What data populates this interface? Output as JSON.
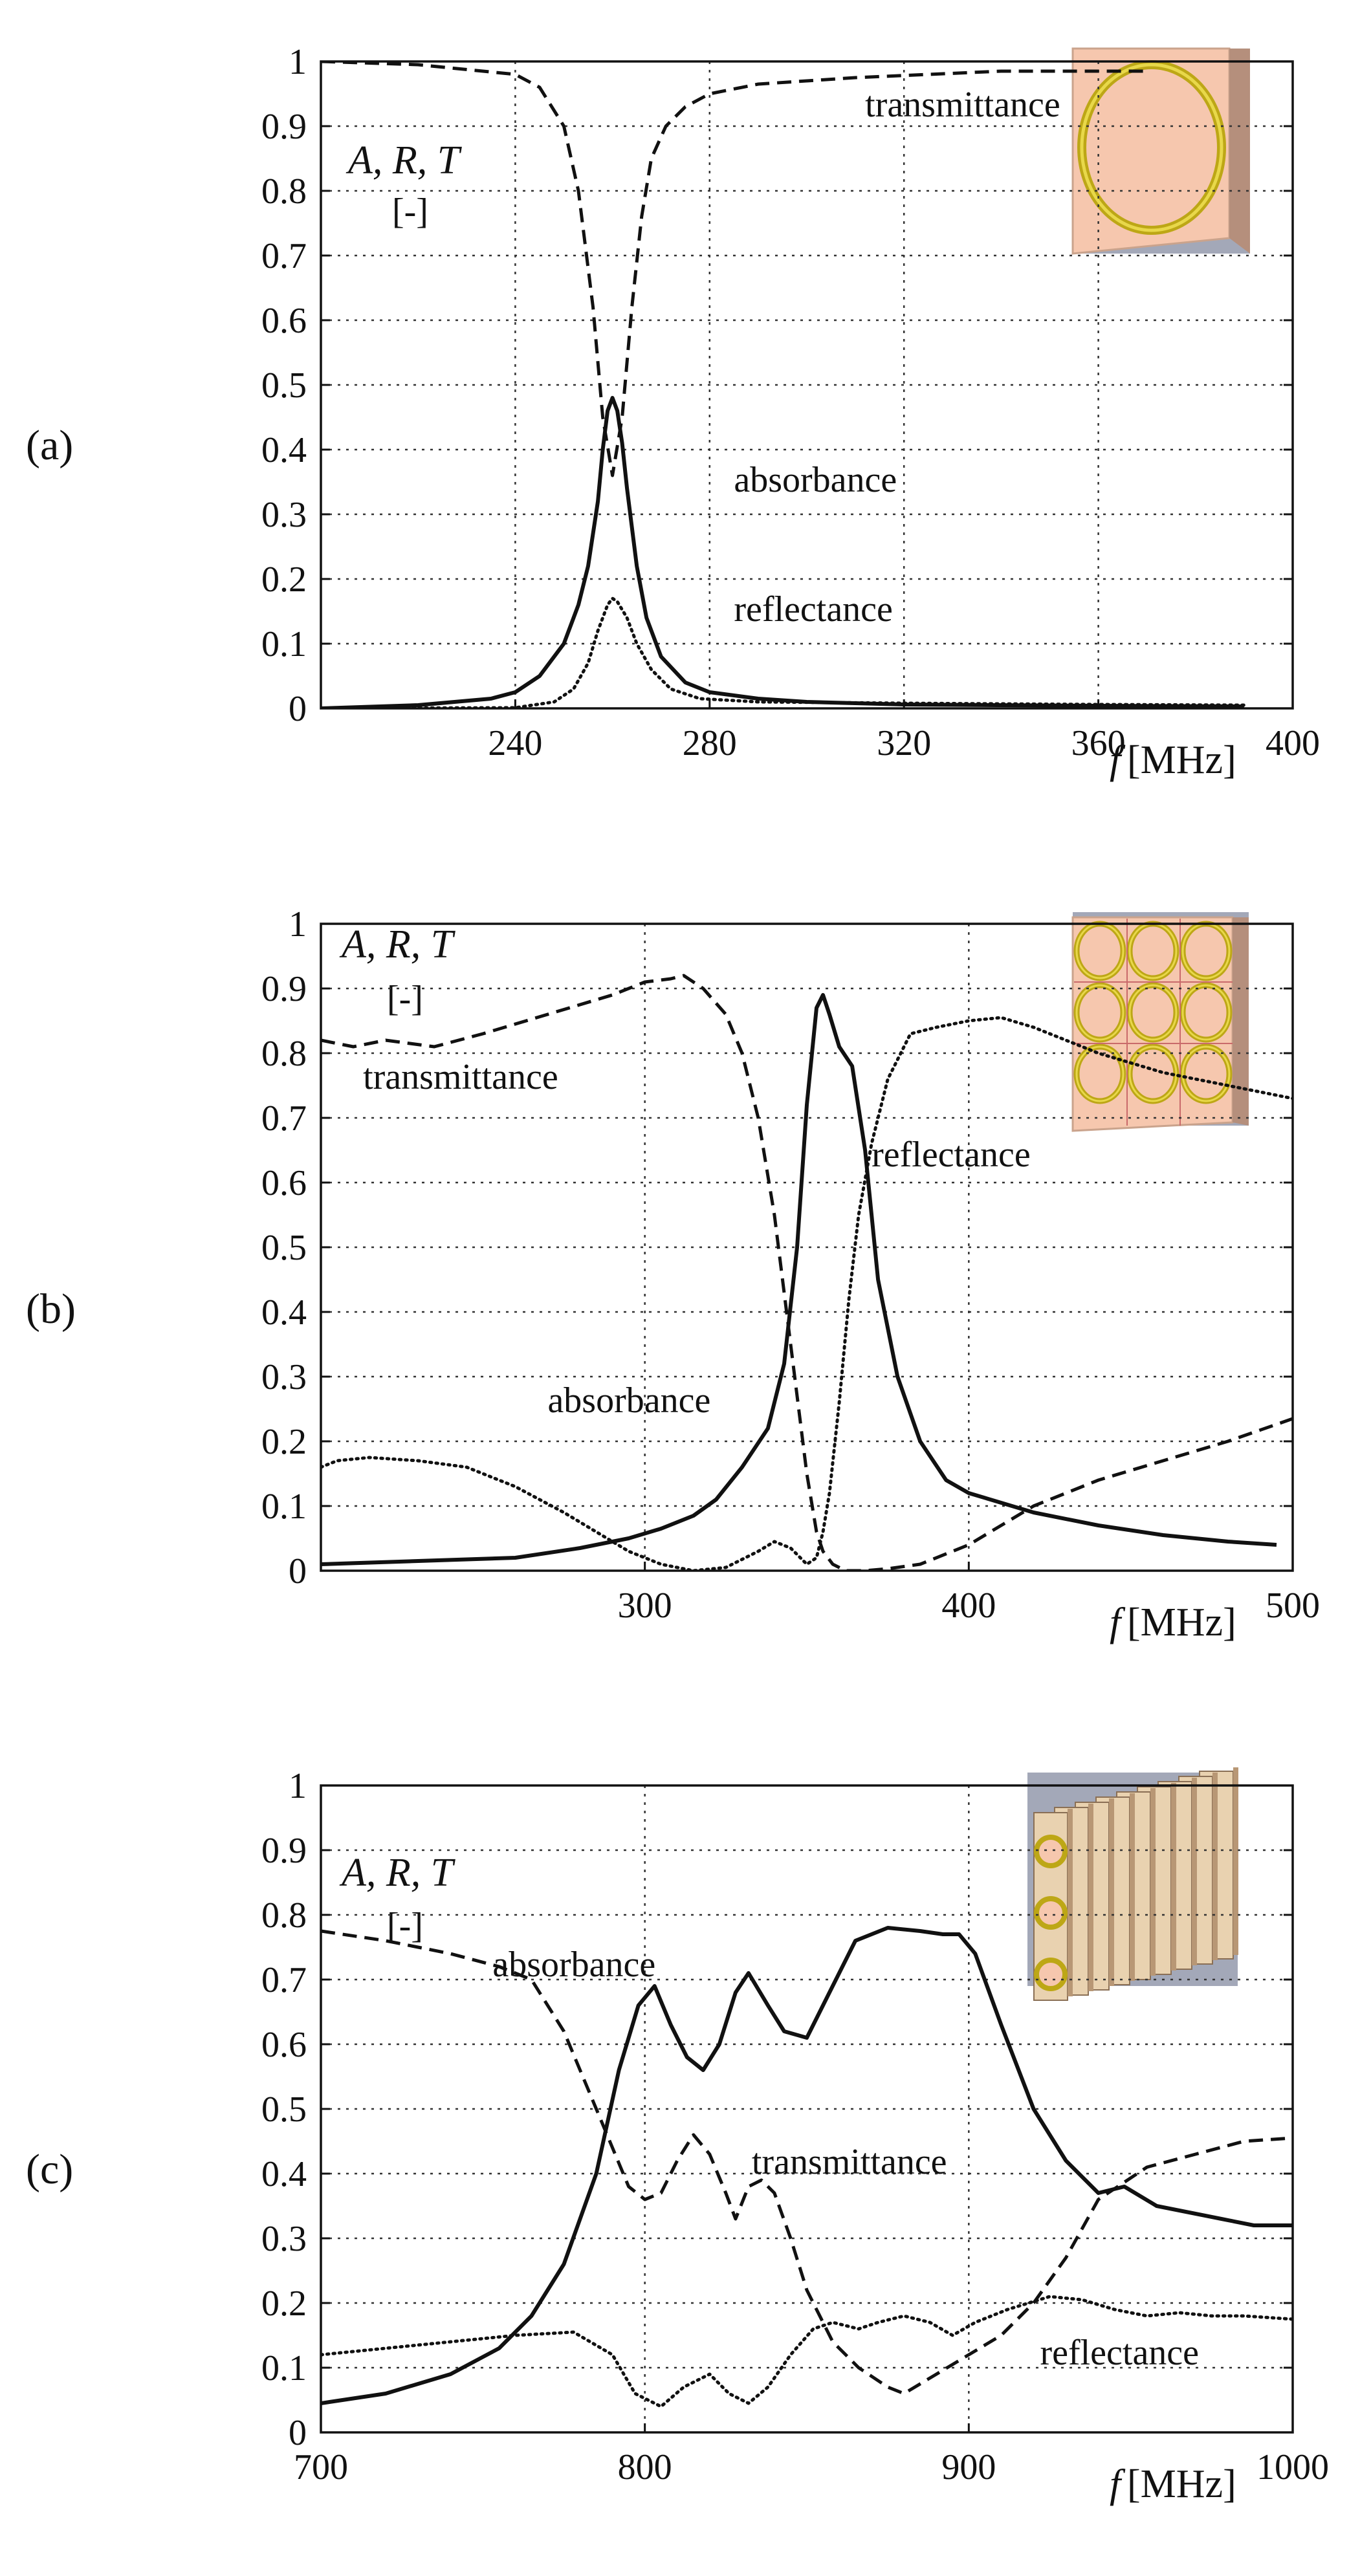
{
  "chart_data": [
    {
      "type": "line",
      "panel_label": "(a)",
      "ylabel_italic": "A, R, T",
      "ylabel_unit": "[-]",
      "xlabel_italic": "f",
      "xlabel_unit": "[MHz]",
      "xlim": [
        200,
        400
      ],
      "ylim": [
        0,
        1
      ],
      "xticks": [
        240,
        280,
        320,
        360,
        400
      ],
      "yticks": [
        0,
        0.1,
        0.2,
        0.3,
        0.4,
        0.5,
        0.6,
        0.7,
        0.8,
        0.9,
        1
      ],
      "ytick_labels": [
        "0",
        "0.1",
        "0.2",
        "0.3",
        "0.4",
        "0.5",
        "0.6",
        "0.7",
        "0.8",
        "0.9",
        "1"
      ],
      "grid": true,
      "inset": "single-ring",
      "series": [
        {
          "name": "transmittance",
          "style": "dashed",
          "x": [
            200,
            220,
            240,
            245,
            250,
            253,
            256,
            258,
            260,
            262,
            264,
            266,
            268,
            271,
            275,
            280,
            290,
            310,
            340,
            370
          ],
          "y": [
            1.0,
            0.995,
            0.98,
            0.96,
            0.9,
            0.8,
            0.62,
            0.45,
            0.36,
            0.45,
            0.62,
            0.76,
            0.85,
            0.9,
            0.93,
            0.95,
            0.965,
            0.975,
            0.985,
            0.985
          ]
        },
        {
          "name": "absorbance",
          "style": "solid",
          "x": [
            200,
            220,
            235,
            240,
            245,
            250,
            253,
            255,
            257,
            258,
            259,
            260,
            261,
            262,
            263,
            265,
            267,
            270,
            275,
            280,
            290,
            300,
            320,
            360,
            390
          ],
          "y": [
            0.0,
            0.005,
            0.015,
            0.025,
            0.05,
            0.1,
            0.16,
            0.22,
            0.32,
            0.4,
            0.46,
            0.48,
            0.46,
            0.41,
            0.34,
            0.22,
            0.14,
            0.08,
            0.04,
            0.025,
            0.015,
            0.01,
            0.006,
            0.004,
            0.003
          ]
        },
        {
          "name": "reflectance",
          "style": "dotted",
          "x": [
            200,
            240,
            248,
            252,
            255,
            257,
            259,
            260,
            261,
            263,
            265,
            268,
            272,
            278,
            290,
            320,
            360,
            390
          ],
          "y": [
            0.0,
            0.001,
            0.01,
            0.03,
            0.07,
            0.12,
            0.16,
            0.17,
            0.165,
            0.14,
            0.1,
            0.06,
            0.03,
            0.015,
            0.01,
            0.008,
            0.006,
            0.005
          ]
        }
      ],
      "annotations": [
        {
          "text": "transmittance",
          "x": 312,
          "y": 0.935
        },
        {
          "text": "absorbance",
          "x": 285,
          "y": 0.355
        },
        {
          "text": "reflectance",
          "x": 285,
          "y": 0.155
        }
      ]
    },
    {
      "type": "line",
      "panel_label": "(b)",
      "ylabel_italic": "A, R, T",
      "ylabel_unit": "[-]",
      "xlabel_italic": "f",
      "xlabel_unit": "[MHz]",
      "xlim": [
        200,
        500
      ],
      "ylim": [
        0,
        1
      ],
      "xticks": [
        300,
        400,
        500
      ],
      "yticks": [
        0,
        0.1,
        0.2,
        0.3,
        0.4,
        0.5,
        0.6,
        0.7,
        0.8,
        0.9,
        1
      ],
      "ytick_labels": [
        "0",
        "0.1",
        "0.2",
        "0.3",
        "0.4",
        "0.5",
        "0.6",
        "0.7",
        "0.8",
        "0.9",
        "1"
      ],
      "grid": true,
      "inset": "3x3-ring-array",
      "series": [
        {
          "name": "transmittance",
          "style": "dashed",
          "x": [
            200,
            210,
            220,
            235,
            250,
            270,
            290,
            300,
            308,
            312,
            318,
            325,
            330,
            335,
            340,
            345,
            350,
            353,
            355,
            358,
            362,
            368,
            375,
            385,
            400,
            420,
            440,
            460,
            480,
            500
          ],
          "y": [
            0.82,
            0.81,
            0.82,
            0.81,
            0.83,
            0.86,
            0.89,
            0.91,
            0.915,
            0.92,
            0.9,
            0.86,
            0.8,
            0.7,
            0.55,
            0.35,
            0.15,
            0.06,
            0.03,
            0.01,
            0.0,
            0.0,
            0.003,
            0.01,
            0.04,
            0.1,
            0.14,
            0.17,
            0.2,
            0.235
          ]
        },
        {
          "name": "absorbance",
          "style": "solid",
          "x": [
            200,
            230,
            260,
            280,
            295,
            305,
            315,
            322,
            330,
            338,
            343,
            347,
            350,
            353,
            355,
            357,
            360,
            364,
            368,
            372,
            378,
            385,
            393,
            400,
            420,
            440,
            460,
            480,
            495
          ],
          "y": [
            0.01,
            0.015,
            0.02,
            0.035,
            0.05,
            0.065,
            0.085,
            0.11,
            0.16,
            0.22,
            0.32,
            0.5,
            0.72,
            0.87,
            0.89,
            0.86,
            0.81,
            0.78,
            0.65,
            0.45,
            0.3,
            0.2,
            0.14,
            0.12,
            0.09,
            0.07,
            0.055,
            0.045,
            0.04
          ]
        },
        {
          "name": "reflectance",
          "style": "dotted",
          "x": [
            200,
            205,
            215,
            230,
            245,
            260,
            275,
            285,
            295,
            305,
            315,
            325,
            335,
            340,
            345,
            350,
            353,
            355,
            357,
            360,
            363,
            366,
            370,
            375,
            382,
            390,
            400,
            410,
            420,
            440,
            460,
            480,
            500
          ],
          "y": [
            0.16,
            0.17,
            0.175,
            0.17,
            0.16,
            0.13,
            0.09,
            0.06,
            0.03,
            0.01,
            0.0,
            0.005,
            0.03,
            0.045,
            0.035,
            0.01,
            0.02,
            0.06,
            0.12,
            0.26,
            0.42,
            0.55,
            0.66,
            0.76,
            0.83,
            0.84,
            0.85,
            0.855,
            0.84,
            0.8,
            0.77,
            0.75,
            0.73
          ]
        }
      ],
      "annotations": [
        {
          "text": "transmittance",
          "x": 213,
          "y": 0.765
        },
        {
          "text": "reflectance",
          "x": 370,
          "y": 0.645
        },
        {
          "text": "absorbance",
          "x": 270,
          "y": 0.265
        }
      ]
    },
    {
      "type": "line",
      "panel_label": "(c)",
      "ylabel_italic": "A, R, T",
      "ylabel_unit": "[-]",
      "xlabel_italic": "f",
      "xlabel_unit": "[MHz]",
      "xlim": [
        700,
        1000
      ],
      "ylim": [
        0,
        1
      ],
      "xticks": [
        700,
        800,
        900,
        1000
      ],
      "yticks": [
        0,
        0.1,
        0.2,
        0.3,
        0.4,
        0.5,
        0.6,
        0.7,
        0.8,
        0.9,
        1
      ],
      "ytick_labels": [
        "0",
        "0.1",
        "0.2",
        "0.3",
        "0.4",
        "0.5",
        "0.6",
        "0.7",
        "0.8",
        "0.9",
        "1"
      ],
      "grid": true,
      "inset": "stacked-ring-arrays",
      "series": [
        {
          "name": "transmittance",
          "style": "dashed",
          "x": [
            700,
            720,
            740,
            755,
            765,
            775,
            785,
            795,
            800,
            805,
            810,
            815,
            820,
            825,
            828,
            832,
            836,
            840,
            845,
            850,
            858,
            866,
            875,
            880,
            890,
            900,
            910,
            920,
            930,
            940,
            955,
            970,
            985,
            1000
          ],
          "y": [
            0.775,
            0.76,
            0.74,
            0.72,
            0.7,
            0.62,
            0.5,
            0.38,
            0.36,
            0.37,
            0.42,
            0.46,
            0.43,
            0.37,
            0.33,
            0.38,
            0.39,
            0.37,
            0.3,
            0.22,
            0.14,
            0.1,
            0.07,
            0.06,
            0.09,
            0.12,
            0.15,
            0.2,
            0.27,
            0.36,
            0.41,
            0.43,
            0.45,
            0.455
          ]
        },
        {
          "name": "absorbance",
          "style": "solid",
          "x": [
            700,
            720,
            740,
            755,
            765,
            775,
            785,
            792,
            798,
            803,
            808,
            813,
            818,
            823,
            828,
            832,
            838,
            843,
            850,
            857,
            865,
            875,
            885,
            892,
            897,
            902,
            910,
            920,
            930,
            940,
            948,
            958,
            968,
            978,
            988,
            1000
          ],
          "y": [
            0.045,
            0.06,
            0.09,
            0.13,
            0.18,
            0.26,
            0.4,
            0.56,
            0.66,
            0.69,
            0.63,
            0.58,
            0.56,
            0.6,
            0.68,
            0.71,
            0.66,
            0.62,
            0.61,
            0.68,
            0.76,
            0.78,
            0.775,
            0.77,
            0.77,
            0.74,
            0.63,
            0.5,
            0.42,
            0.37,
            0.38,
            0.35,
            0.34,
            0.33,
            0.32,
            0.32
          ]
        },
        {
          "name": "reflectance",
          "style": "dotted",
          "x": [
            700,
            720,
            740,
            760,
            778,
            790,
            797,
            805,
            812,
            820,
            826,
            832,
            838,
            845,
            852,
            858,
            866,
            872,
            880,
            888,
            895,
            902,
            912,
            925,
            935,
            945,
            955,
            965,
            975,
            985,
            1000
          ],
          "y": [
            0.12,
            0.13,
            0.14,
            0.15,
            0.155,
            0.12,
            0.06,
            0.04,
            0.07,
            0.09,
            0.06,
            0.045,
            0.07,
            0.12,
            0.16,
            0.17,
            0.16,
            0.17,
            0.18,
            0.17,
            0.15,
            0.17,
            0.19,
            0.21,
            0.205,
            0.19,
            0.18,
            0.185,
            0.18,
            0.18,
            0.175
          ]
        }
      ],
      "annotations": [
        {
          "text": "absorbance",
          "x": 753,
          "y": 0.725
        },
        {
          "text": "transmittance",
          "x": 833,
          "y": 0.42
        },
        {
          "text": "reflectance",
          "x": 922,
          "y": 0.125
        }
      ]
    }
  ]
}
